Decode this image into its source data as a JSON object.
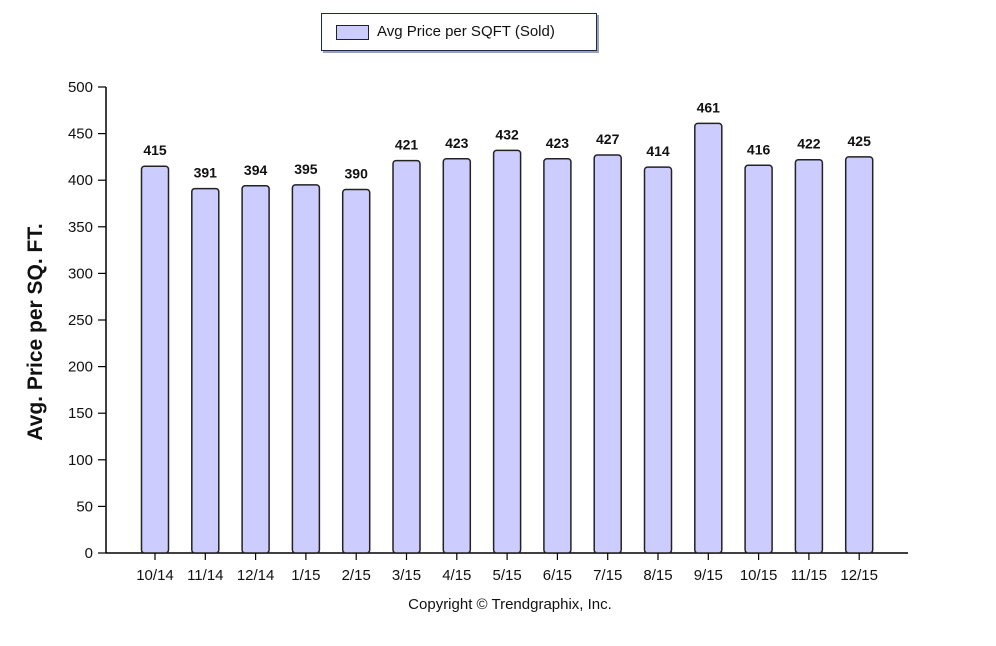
{
  "chart_data": {
    "type": "bar",
    "categories": [
      "10/14",
      "11/14",
      "12/14",
      "1/15",
      "2/15",
      "3/15",
      "4/15",
      "5/15",
      "6/15",
      "7/15",
      "8/15",
      "9/15",
      "10/15",
      "11/15",
      "12/15"
    ],
    "series": [
      {
        "name": "Avg Price per SQFT (Sold)",
        "values": [
          415,
          391,
          394,
          395,
          390,
          421,
          423,
          432,
          423,
          427,
          414,
          461,
          416,
          422,
          425
        ]
      }
    ],
    "ylabel": "Avg. Price per SQ. FT.",
    "xlabel": "",
    "ylim": [
      0,
      500
    ],
    "yticks": [
      "0",
      "50",
      "100",
      "150",
      "200",
      "250",
      "300",
      "350",
      "400",
      "450",
      "500"
    ],
    "legend_position": "top-center",
    "grid": false,
    "bar_color": "#ccccff",
    "bar_outline_color": "#222222"
  },
  "footer": {
    "copyright": "Copyright © Trendgraphix, Inc."
  }
}
